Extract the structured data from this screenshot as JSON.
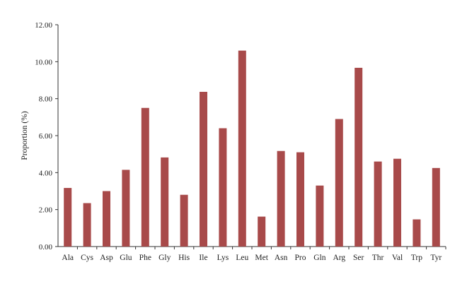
{
  "chart_data": {
    "type": "bar",
    "title": "",
    "xlabel": "",
    "ylabel": "Proportion (%)",
    "ylim": [
      0,
      12
    ],
    "yticks": [
      "0.00",
      "2.00",
      "4.00",
      "6.00",
      "8.00",
      "10.00",
      "12.00"
    ],
    "categories": [
      "Ala",
      "Cys",
      "Asp",
      "Glu",
      "Phe",
      "Gly",
      "His",
      "Ile",
      "Lys",
      "Leu",
      "Met",
      "Asn",
      "Pro",
      "Gln",
      "Arg",
      "Ser",
      "Thr",
      "Val",
      "Trp",
      "Tyr"
    ],
    "values": [
      3.17,
      2.35,
      3.0,
      4.15,
      7.5,
      4.82,
      2.8,
      8.37,
      6.4,
      10.6,
      1.62,
      5.17,
      5.1,
      3.3,
      6.9,
      9.67,
      4.6,
      4.75,
      1.47,
      4.25
    ],
    "bar_color": "#a84a4a",
    "grid": false,
    "legend": "none"
  }
}
